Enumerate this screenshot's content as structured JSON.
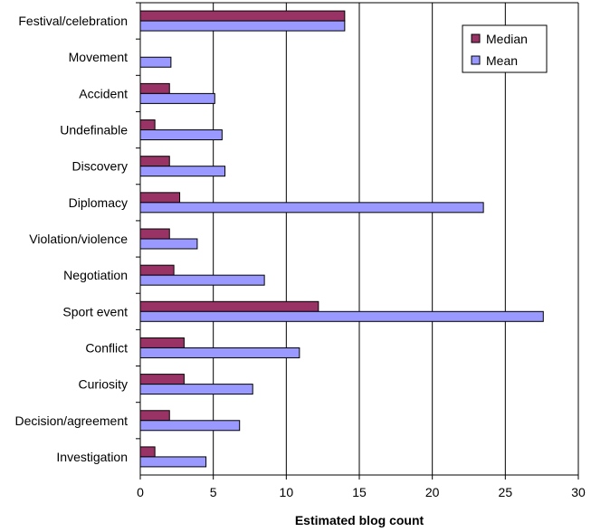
{
  "chart_data": {
    "type": "bar",
    "orientation": "horizontal",
    "categories": [
      "Festival/celebration",
      "Movement",
      "Accident",
      "Undefinable",
      "Discovery",
      "Diplomacy",
      "Violation/violence",
      "Negotiation",
      "Sport event",
      "Conflict",
      "Curiosity",
      "Decision/agreement",
      "Investigation"
    ],
    "series": [
      {
        "name": "Median",
        "color": "#993366",
        "values": [
          14,
          0,
          2,
          1,
          2,
          2.7,
          2,
          2.3,
          12.2,
          3,
          3,
          2,
          1
        ]
      },
      {
        "name": "Mean",
        "color": "#9999ff",
        "values": [
          14,
          2.1,
          5.1,
          5.6,
          5.8,
          23.5,
          3.9,
          8.5,
          27.6,
          10.9,
          7.7,
          6.8,
          4.5
        ]
      }
    ],
    "xlabel": "Estimated blog count",
    "ylabel": "",
    "xlim": [
      0,
      30
    ],
    "xticks": [
      0,
      5,
      10,
      15,
      20,
      25,
      30
    ],
    "grid": "vertical major",
    "legend_position": "top-right"
  }
}
